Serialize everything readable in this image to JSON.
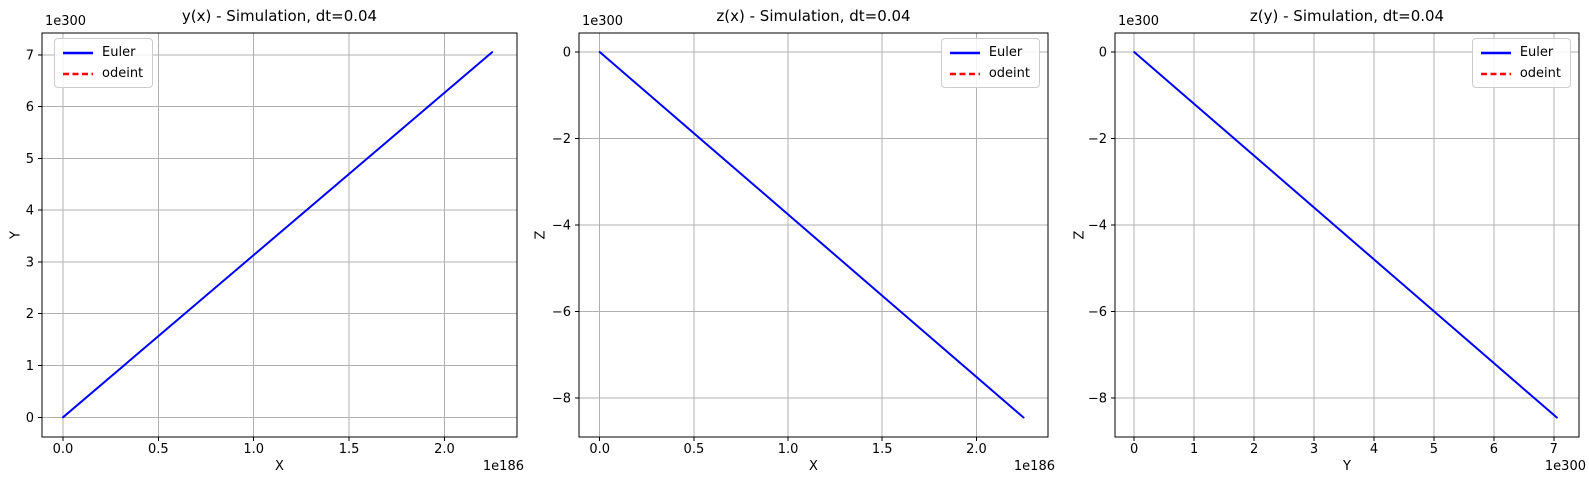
{
  "window": {
    "background": "#ffffff",
    "spine_color": "#000000",
    "grid_color": "#b0b0b0"
  },
  "chart_data": [
    {
      "type": "line",
      "title": "y(x) - Simulation, dt=0.04",
      "xlabel": "X",
      "ylabel": "Y",
      "x_offset_text": "1e186",
      "y_offset_text": "1e300",
      "xlim": [
        -0.11,
        2.38
      ],
      "ylim": [
        -0.38,
        7.42
      ],
      "xtick_values": [
        0.0,
        0.5,
        1.0,
        1.5,
        2.0
      ],
      "xtick_labels": [
        "0.0",
        "0.5",
        "1.0",
        "1.5",
        "2.0"
      ],
      "ytick_values": [
        0,
        1,
        2,
        3,
        4,
        5,
        6,
        7
      ],
      "ytick_labels": [
        "0",
        "1",
        "2",
        "3",
        "4",
        "5",
        "6",
        "7"
      ],
      "grid": true,
      "legend_position": "upper-left",
      "series": [
        {
          "name": "Euler",
          "color": "#0000ff",
          "line_style": "solid",
          "x": [
            0,
            2.25
          ],
          "y": [
            0,
            7.05
          ]
        },
        {
          "name": "odeint",
          "color": "#ff0000",
          "line_style": "dashed",
          "x": [],
          "y": []
        }
      ]
    },
    {
      "type": "line",
      "title": "z(x) - Simulation, dt=0.04",
      "xlabel": "X",
      "ylabel": "Z",
      "x_offset_text": "1e186",
      "y_offset_text": "1e300",
      "xlim": [
        -0.11,
        2.38
      ],
      "ylim": [
        -8.9,
        0.44
      ],
      "xtick_values": [
        0.0,
        0.5,
        1.0,
        1.5,
        2.0
      ],
      "xtick_labels": [
        "0.0",
        "0.5",
        "1.0",
        "1.5",
        "2.0"
      ],
      "ytick_values": [
        0,
        -2,
        -4,
        -6,
        -8
      ],
      "ytick_labels": [
        "0",
        "−2",
        "−4",
        "−6",
        "−8"
      ],
      "grid": true,
      "legend_position": "upper-right",
      "series": [
        {
          "name": "Euler",
          "color": "#0000ff",
          "line_style": "solid",
          "x": [
            0,
            2.25
          ],
          "y": [
            0,
            -8.45
          ]
        },
        {
          "name": "odeint",
          "color": "#ff0000",
          "line_style": "dashed",
          "x": [],
          "y": []
        }
      ]
    },
    {
      "type": "line",
      "title": "z(y) - Simulation, dt=0.04",
      "xlabel": "Y",
      "ylabel": "Z",
      "x_offset_text": "1e300",
      "y_offset_text": "1e300",
      "xlim": [
        -0.32,
        7.42
      ],
      "ylim": [
        -8.9,
        0.44
      ],
      "xtick_values": [
        0,
        1,
        2,
        3,
        4,
        5,
        6,
        7
      ],
      "xtick_labels": [
        "0",
        "1",
        "2",
        "3",
        "4",
        "5",
        "6",
        "7"
      ],
      "ytick_values": [
        0,
        -2,
        -4,
        -6,
        -8
      ],
      "ytick_labels": [
        "0",
        "−2",
        "−4",
        "−6",
        "−8"
      ],
      "grid": true,
      "legend_position": "upper-right",
      "series": [
        {
          "name": "Euler",
          "color": "#0000ff",
          "line_style": "solid",
          "x": [
            0,
            7.05
          ],
          "y": [
            0,
            -8.45
          ]
        },
        {
          "name": "odeint",
          "color": "#ff0000",
          "line_style": "dashed",
          "x": [],
          "y": []
        }
      ]
    }
  ]
}
